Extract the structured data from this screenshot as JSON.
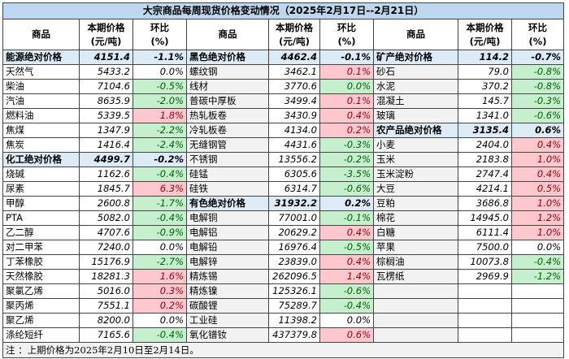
{
  "title": "大宗商品每周现货价格变动情况（2025年2月17日--2月21日）",
  "headers": {
    "name": "商品",
    "price": "本期价格\n(元/吨)",
    "pct": "环比\n(%)"
  },
  "colors": {
    "up_bg": "#ffc7ce",
    "up_text": "#9c0006",
    "down_bg": "#c6efce",
    "down_text": "#006100",
    "group_bg": "#ddebf7",
    "title_bg": "#bdd7ee"
  },
  "columns": [
    [
      {
        "name": "能源绝对价格",
        "price": "4151.4",
        "pct": "-1.1%",
        "group": true
      },
      {
        "name": "天然气",
        "price": "5433.2",
        "pct": "0.0%",
        "tone": "none"
      },
      {
        "name": "柴油",
        "price": "7104.6",
        "pct": "-0.5%",
        "tone": "green"
      },
      {
        "name": "汽油",
        "price": "8635.9",
        "pct": "-2.0%",
        "tone": "green"
      },
      {
        "name": "燃料油",
        "price": "5339.5",
        "pct": "1.8%",
        "tone": "red"
      },
      {
        "name": "焦煤",
        "price": "1347.9",
        "pct": "-2.2%",
        "tone": "green"
      },
      {
        "name": "焦炭",
        "price": "1416.4",
        "pct": "-2.4%",
        "tone": "green"
      },
      {
        "name": "化工绝对价格",
        "price": "4499.7",
        "pct": "-0.2%",
        "group": true
      },
      {
        "name": "烧碱",
        "price": "1162.6",
        "pct": "-0.4%",
        "tone": "green"
      },
      {
        "name": "尿素",
        "price": "1845.7",
        "pct": "6.3%",
        "tone": "red"
      },
      {
        "name": "甲醇",
        "price": "2600.8",
        "pct": "-1.7%",
        "tone": "green"
      },
      {
        "name": "PTA",
        "price": "5082.0",
        "pct": "-0.4%",
        "tone": "green"
      },
      {
        "name": "乙二醇",
        "price": "4707.6",
        "pct": "-0.9%",
        "tone": "green"
      },
      {
        "name": "对二甲苯",
        "price": "7240.0",
        "pct": "0.0%",
        "tone": "none"
      },
      {
        "name": "丁苯橡胶",
        "price": "15176.9",
        "pct": "-2.7%",
        "tone": "green"
      },
      {
        "name": "天然橡胶",
        "price": "18281.3",
        "pct": "1.6%",
        "tone": "red"
      },
      {
        "name": "聚氯乙烯",
        "price": "5016.0",
        "pct": "0.3%",
        "tone": "red"
      },
      {
        "name": "聚丙烯",
        "price": "7551.1",
        "pct": "0.2%",
        "tone": "red"
      },
      {
        "name": "聚乙烯",
        "price": "8200.0",
        "pct": "0.0%",
        "tone": "none"
      },
      {
        "name": "涤纶短纤",
        "price": "7165.6",
        "pct": "-0.4%",
        "tone": "green"
      }
    ],
    [
      {
        "name": "黑色绝对价格",
        "price": "4462.4",
        "pct": "-0.1%",
        "group": true
      },
      {
        "name": "螺纹钢",
        "price": "3462.1",
        "pct": "0.1%",
        "tone": "red"
      },
      {
        "name": "线材",
        "price": "3770.6",
        "pct": "0.0%",
        "tone": "green"
      },
      {
        "name": "普碳中厚板",
        "price": "3499.4",
        "pct": "0.1%",
        "tone": "red"
      },
      {
        "name": "热轧板卷",
        "price": "3430.9",
        "pct": "0.4%",
        "tone": "red"
      },
      {
        "name": "冷轧板卷",
        "price": "4134.0",
        "pct": "0.2%",
        "tone": "red"
      },
      {
        "name": "无缝钢管",
        "price": "4431.6",
        "pct": "-0.3%",
        "tone": "green"
      },
      {
        "name": "不锈钢",
        "price": "13556.2",
        "pct": "-0.2%",
        "tone": "green"
      },
      {
        "name": "硅锰",
        "price": "6305.6",
        "pct": "-3.5%",
        "tone": "green"
      },
      {
        "name": "硅铁",
        "price": "6314.7",
        "pct": "-0.6%",
        "tone": "green"
      },
      {
        "name": "有色绝对价格",
        "price": "31932.2",
        "pct": "0.2%",
        "group": true
      },
      {
        "name": "电解铜",
        "price": "77001.0",
        "pct": "-0.1%",
        "tone": "green"
      },
      {
        "name": "电解铝",
        "price": "20629.2",
        "pct": "0.4%",
        "tone": "red"
      },
      {
        "name": "电解铅",
        "price": "16976.4",
        "pct": "-0.5%",
        "tone": "green"
      },
      {
        "name": "电解锌",
        "price": "23839.0",
        "pct": "0.4%",
        "tone": "red"
      },
      {
        "name": "精炼锡",
        "price": "262096.5",
        "pct": "1.4%",
        "tone": "red"
      },
      {
        "name": "精炼镍",
        "price": "125326.1",
        "pct": "-0.6%",
        "tone": "green"
      },
      {
        "name": "碳酸锂",
        "price": "75289.7",
        "pct": "-0.4%",
        "tone": "green"
      },
      {
        "name": "工业硅",
        "price": "11398.2",
        "pct": "0.0%",
        "tone": "none"
      },
      {
        "name": "氧化镨钕",
        "price": "437379.8",
        "pct": "0.6%",
        "tone": "red"
      }
    ],
    [
      {
        "name": "矿产绝对价格",
        "price": "114.2",
        "pct": "-0.7%",
        "group": true
      },
      {
        "name": "砂石",
        "price": "79.0",
        "pct": "-0.8%",
        "tone": "green"
      },
      {
        "name": "水泥",
        "price": "370.2",
        "pct": "-0.8%",
        "tone": "green"
      },
      {
        "name": "混凝土",
        "price": "145.7",
        "pct": "-0.3%",
        "tone": "green"
      },
      {
        "name": "玻璃",
        "price": "1341.0",
        "pct": "-0.6%",
        "tone": "green"
      },
      {
        "name": "农产品绝对价格",
        "price": "3135.4",
        "pct": "0.6%",
        "group": true
      },
      {
        "name": "小麦",
        "price": "2404.0",
        "pct": "0.4%",
        "tone": "red"
      },
      {
        "name": "玉米",
        "price": "2183.8",
        "pct": "1.0%",
        "tone": "red"
      },
      {
        "name": "玉米淀粉",
        "price": "2747.4",
        "pct": "0.4%",
        "tone": "red"
      },
      {
        "name": "大豆",
        "price": "4214.1",
        "pct": "0.5%",
        "tone": "red"
      },
      {
        "name": "豆粕",
        "price": "3686.8",
        "pct": "1.0%",
        "tone": "red"
      },
      {
        "name": "棉花",
        "price": "14945.0",
        "pct": "1.2%",
        "tone": "red"
      },
      {
        "name": "白糖",
        "price": "6111.4",
        "pct": "1.0%",
        "tone": "red"
      },
      {
        "name": "苹果",
        "price": "7500.0",
        "pct": "0.0%",
        "tone": "none"
      },
      {
        "name": "棕榈油",
        "price": "10073.8",
        "pct": "-0.4%",
        "tone": "green"
      },
      {
        "name": "瓦楞纸",
        "price": "2969.9",
        "pct": "-1.2%",
        "tone": "green"
      },
      null,
      null,
      null,
      null
    ]
  ],
  "footnote": "注 ：上期价格为2025年2月10日至2月14日。"
}
